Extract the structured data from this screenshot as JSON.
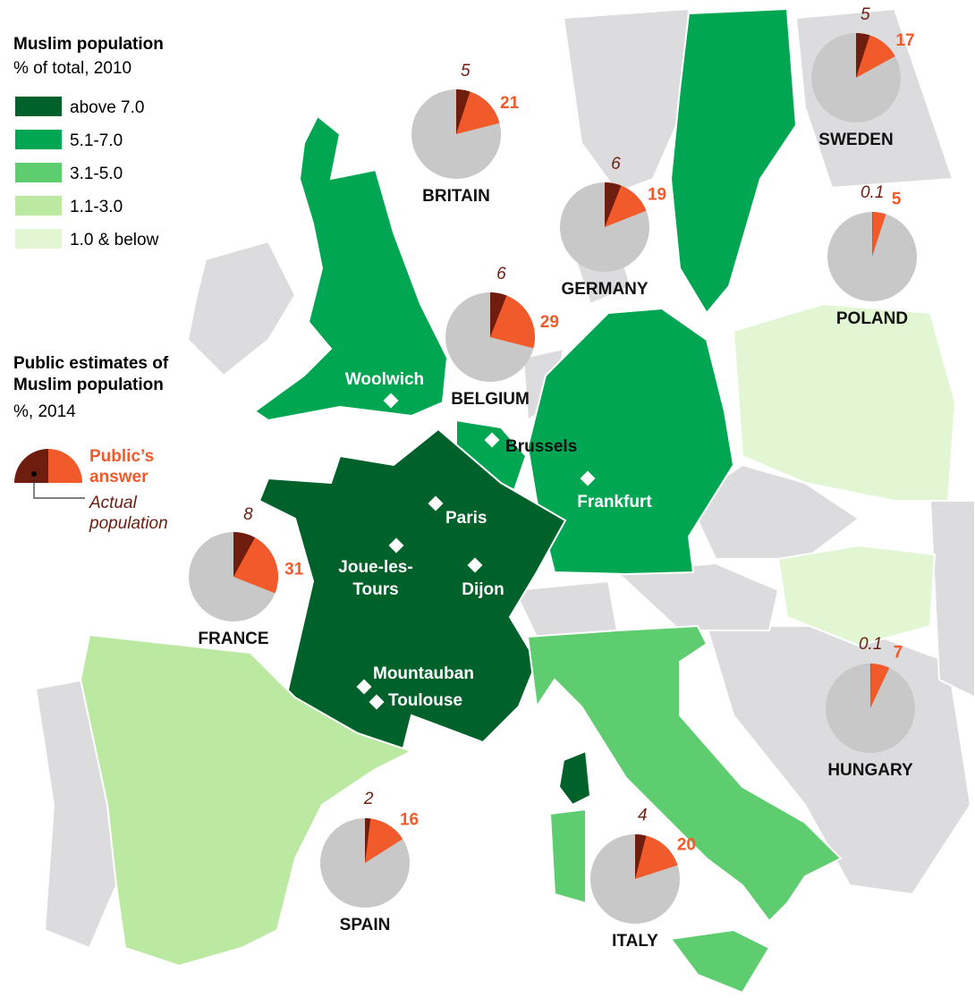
{
  "legend": {
    "title": "Muslim population",
    "subtitle": "% of total, 2010",
    "classes": [
      {
        "label": "above 7.0",
        "color": "#00622a"
      },
      {
        "label": "5.1-7.0",
        "color": "#00a651"
      },
      {
        "label": "3.1-5.0",
        "color": "#5ecd6f"
      },
      {
        "label": "1.1-3.0",
        "color": "#bbe9a1"
      },
      {
        "label": "1.0 & below",
        "color": "#e2f6d3"
      }
    ]
  },
  "estimates_legend": {
    "title_lines": [
      "Public estimates of",
      "Muslim population"
    ],
    "subtitle": "%, 2014",
    "public_lines": [
      "Public’s",
      "answer"
    ],
    "actual_lines": [
      "Actual",
      "population"
    ],
    "colors": {
      "actual": "#6e1d0e",
      "public": "#f15a2b",
      "rest": "#c8c8c8"
    }
  },
  "countries": [
    {
      "name": "BRITAIN",
      "actual": 5,
      "public": 21
    },
    {
      "name": "GERMANY",
      "actual": 6,
      "public": 19
    },
    {
      "name": "SWEDEN",
      "actual": 5,
      "public": 17
    },
    {
      "name": "POLAND",
      "actual": 0.1,
      "public": 5
    },
    {
      "name": "BELGIUM",
      "actual": 6,
      "public": 29
    },
    {
      "name": "FRANCE",
      "actual": 8,
      "public": 31
    },
    {
      "name": "SPAIN",
      "actual": 2,
      "public": 16
    },
    {
      "name": "ITALY",
      "actual": 4,
      "public": 20
    },
    {
      "name": "HUNGARY",
      "actual": 0.1,
      "public": 7
    }
  ],
  "cities": [
    {
      "lines": [
        "Woolwich"
      ]
    },
    {
      "lines": [
        "Brussels"
      ]
    },
    {
      "lines": [
        "Frankfurt"
      ]
    },
    {
      "lines": [
        "Paris"
      ]
    },
    {
      "lines": [
        "Joue-les-",
        "Tours"
      ]
    },
    {
      "lines": [
        "Dijon"
      ]
    },
    {
      "lines": [
        "Mountauban"
      ]
    },
    {
      "lines": [
        "Toulouse"
      ]
    }
  ]
}
